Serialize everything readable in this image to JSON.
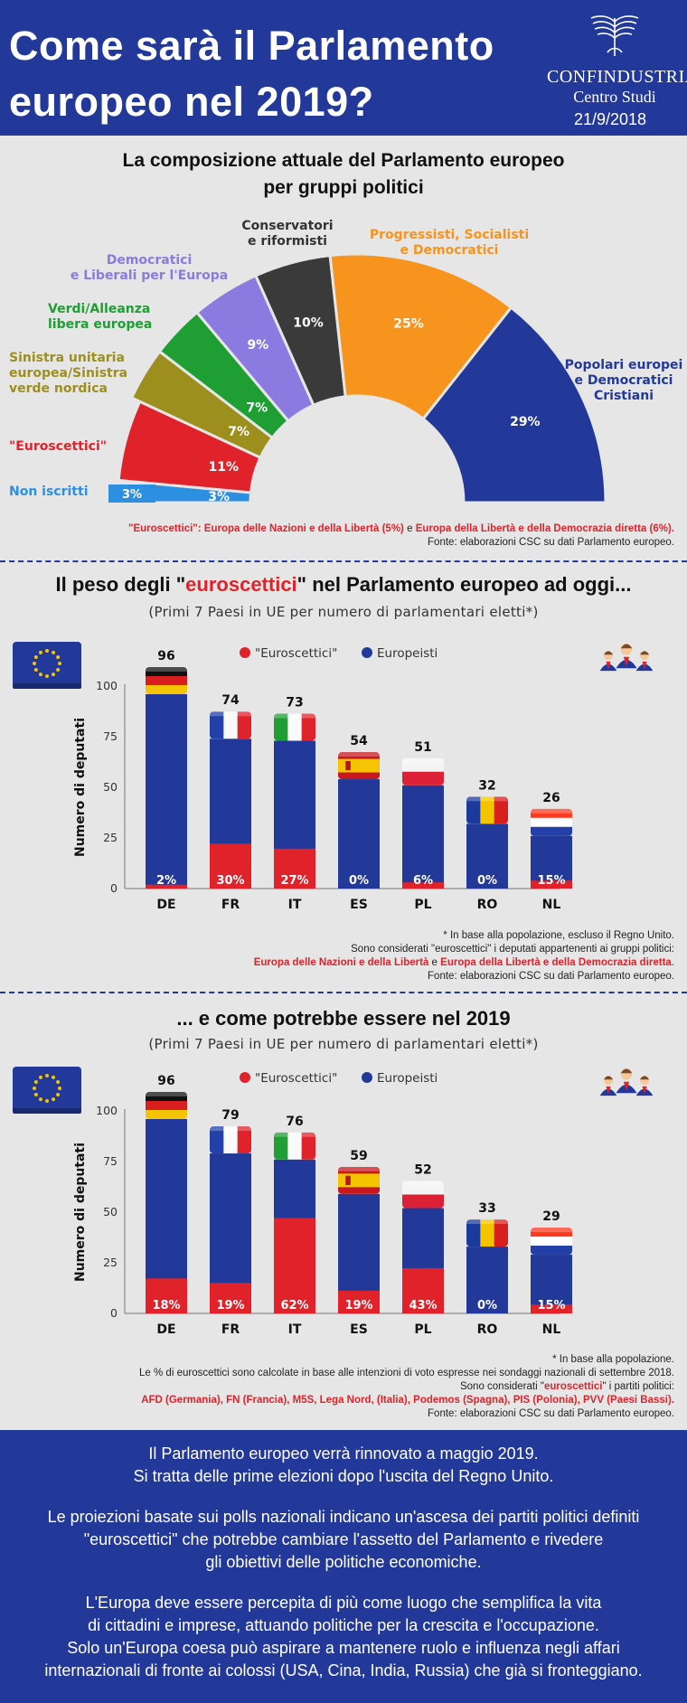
{
  "header": {
    "title_line1": "Come sarà il Parlamento",
    "title_line2": "europeo nel 2019?",
    "logo_name": "CONFINDUSTRIA",
    "logo_sub": "Centro Studi",
    "date": "21/9/2018",
    "logo_icon": "confindustria-eagle-icon"
  },
  "section1": {
    "title_line1": "La composizione attuale del Parlamento europeo",
    "title_line2": "per gruppi politici",
    "note_part1": "\"Euroscettici\": Europa delle Nazioni e della Libertà (5%)",
    "note_and": " e ",
    "note_part2": "Europa della Libertà e della Democrazia diretta (6%).",
    "source": "Fonte: elaborazioni CSC su dati Parlamento europeo."
  },
  "section2": {
    "title_pre": "Il peso degli \"",
    "title_red": "euroscettici",
    "title_post": "\" nel Parlamento europeo ad oggi...",
    "subtitle": "(Primi 7 Paesi in UE per numero di parlamentari eletti*)",
    "note1": "* In base alla popolazione, escluso il Regno Unito.",
    "note2": "Sono considerati \"euroscettici\" i deputati appartenenti ai gruppi politici:",
    "note3_red1": "Europa delle Nazioni e della Libertà",
    "note3_and": " e ",
    "note3_red2": "Europa della Libertà e della Democrazia diretta",
    "note3_end": ".",
    "source": "Fonte: elaborazioni CSC su dati Parlamento europeo."
  },
  "section3": {
    "title": "... e come potrebbe essere nel 2019",
    "subtitle": "(Primi 7 Paesi in UE per numero di parlamentari eletti*)",
    "note1": "* In base alla popolazione.",
    "note2": "Le % di euroscettici sono calcolate in base alle intenzioni di voto espresse nei sondaggi nazionali di settembre 2018.",
    "note3_pre": "Sono considerati \"",
    "note3_red": "euroscettici",
    "note3_post": "\" i partiti politici:",
    "note4": "AFD (Germania), FN (Francia), M5S, Lega Nord, (Italia), Podemos (Spagna), PIS (Polonia), PVV (Paesi Bassi).",
    "source": "Fonte: elaborazioni CSC su dati Parlamento europeo."
  },
  "footer": {
    "p1_l1": "Il Parlamento europeo verrà rinnovato a maggio 2019.",
    "p1_l2": "Si tratta delle prime elezioni dopo l'uscita del Regno Unito.",
    "p2_l1": "Le proiezioni basate sui polls nazionali indicano un'ascesa dei partiti politici definiti",
    "p2_l2": "\"euroscettici\" che potrebbe cambiare l'assetto del Parlamento e rivedere",
    "p2_l3": "gli obiettivi delle politiche economiche.",
    "p3_l1": "L'Europa deve essere percepita di più come luogo che semplifica la vita",
    "p3_l2": "di cittadini e imprese, attuando politiche per la crescita e l'occupazione.",
    "p3_l3": "Solo un'Europa coesa può aspirare a mantenere ruolo e influenza negli affari",
    "p3_l4": "internazionali di fronte ai colossi (USA, Cina, India, Russia) che già si fronteggiano."
  },
  "colors": {
    "blue": "#23399a",
    "red": "#e0232b",
    "orange": "#f7941d",
    "black": "#3a3a3a",
    "purple": "#8b7be0",
    "green": "#1f9e34",
    "olive": "#9c8f1e",
    "lightblue": "#2d8fe0"
  },
  "chart_data": [
    {
      "type": "pie",
      "shape": "half-donut",
      "slices": [
        {
          "label_lines": [
            "Non iscritti"
          ],
          "value": 3,
          "color": "#2d8fe0",
          "label_color": "#2d8fe0"
        },
        {
          "label_lines": [
            "\"Euroscettici\""
          ],
          "value": 11,
          "color": "#e0232b",
          "label_color": "#e0232b"
        },
        {
          "label_lines": [
            "Sinistra unitaria",
            "europea/Sinistra",
            "verde nordica"
          ],
          "value": 7,
          "color": "#9c8f1e",
          "label_color": "#9c8f1e"
        },
        {
          "label_lines": [
            "Verdi/Alleanza",
            "libera europea"
          ],
          "value": 7,
          "color": "#1f9e34",
          "label_color": "#1f9e34"
        },
        {
          "label_lines": [
            "Democratici",
            "e Liberali per l'Europa"
          ],
          "value": 9,
          "color": "#8b7be0",
          "label_color": "#8b7be0"
        },
        {
          "label_lines": [
            "Conservatori",
            "e riformisti"
          ],
          "value": 10,
          "color": "#3a3a3a",
          "label_color": "#333333"
        },
        {
          "label_lines": [
            "Progressisti, Socialisti",
            "e Democratici"
          ],
          "value": 25,
          "color": "#f7941d",
          "label_color": "#f7941d"
        },
        {
          "label_lines": [
            "Popolari europei",
            "e Democratici",
            "Cristiani"
          ],
          "value": 29,
          "color": "#23399a",
          "label_color": "#23399a"
        }
      ]
    },
    {
      "type": "bar",
      "stacked": true,
      "categories": [
        "DE",
        "FR",
        "IT",
        "ES",
        "PL",
        "RO",
        "NL"
      ],
      "totals": [
        96,
        74,
        73,
        54,
        51,
        32,
        26
      ],
      "euroscettici_pct": [
        2,
        30,
        27,
        0,
        6,
        0,
        15
      ],
      "flags": [
        "germany-flag-icon",
        "france-flag-icon",
        "italy-flag-icon",
        "spain-flag-icon",
        "poland-flag-icon",
        "romania-flag-icon",
        "netherlands-flag-icon"
      ],
      "series": [
        {
          "name": "\"Euroscettici\"",
          "color": "#e0232b"
        },
        {
          "name": "Europeisti",
          "color": "#23399a"
        }
      ],
      "ylabel": "Numero di deputati",
      "ylim": [
        0,
        100
      ],
      "yticks": [
        0,
        25,
        50,
        75,
        100
      ],
      "legend_position": "top"
    },
    {
      "type": "bar",
      "stacked": true,
      "categories": [
        "DE",
        "FR",
        "IT",
        "ES",
        "PL",
        "RO",
        "NL"
      ],
      "totals": [
        96,
        79,
        76,
        59,
        52,
        33,
        29
      ],
      "euroscettici_pct": [
        18,
        19,
        62,
        19,
        43,
        0,
        15
      ],
      "flags": [
        "germany-flag-icon",
        "france-flag-icon",
        "italy-flag-icon",
        "spain-flag-icon",
        "poland-flag-icon",
        "romania-flag-icon",
        "netherlands-flag-icon"
      ],
      "series": [
        {
          "name": "\"Euroscettici\"",
          "color": "#e0232b"
        },
        {
          "name": "Europeisti",
          "color": "#23399a"
        }
      ],
      "ylabel": "Numero di deputati",
      "ylim": [
        0,
        100
      ],
      "yticks": [
        0,
        25,
        50,
        75,
        100
      ],
      "legend_position": "top"
    }
  ]
}
